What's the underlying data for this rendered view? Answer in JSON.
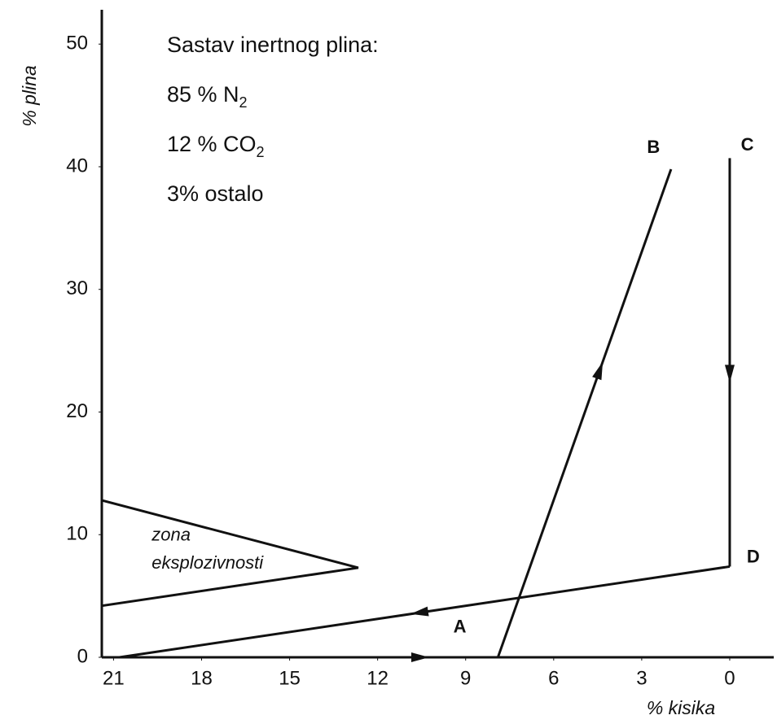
{
  "chart_data": {
    "type": "line",
    "xlabel": "% kisika",
    "ylabel": "% plina",
    "xlim": [
      21.4,
      -1.5
    ],
    "ylim": [
      0,
      52.8
    ],
    "xticks": [
      21,
      18,
      15,
      12,
      9,
      6,
      3,
      0
    ],
    "yticks": [
      0,
      10,
      20,
      30,
      40,
      50
    ],
    "notes": [
      "Sastav inertnog plina:",
      {
        "text": "85 % N",
        "sub": "2"
      },
      {
        "text": "12 % CO",
        "sub": "2"
      },
      "3% ostalo"
    ],
    "annotations": [
      {
        "text": "zona",
        "x": 19.7,
        "y": 9.9
      },
      {
        "text": "eksplozivnosti",
        "x": 19.7,
        "y": 7.6
      }
    ],
    "point_labels": [
      {
        "label": "A",
        "x": 9.2,
        "y": 2.4
      },
      {
        "label": "B",
        "x": 2.6,
        "y": 41.5
      },
      {
        "label": "C",
        "x": -0.6,
        "y": 41.7
      },
      {
        "label": "D",
        "x": -0.8,
        "y": 8.1
      }
    ],
    "series": [
      {
        "color": "#111111",
        "x": [
          21.4,
          12.66,
          21.4
        ],
        "values": [
          12.8,
          7.3,
          4.2
        ]
      },
      {
        "color": "#111111",
        "x": [
          21,
          7.9
        ],
        "values": [
          0,
          0
        ]
      },
      {
        "color": "#111111",
        "x": [
          7.9,
          2.0
        ],
        "values": [
          0,
          39.8
        ]
      },
      {
        "color": "#111111",
        "x": [
          0,
          0
        ],
        "values": [
          40.7,
          7.4
        ]
      },
      {
        "color": "#111111",
        "x": [
          0,
          20.8
        ],
        "values": [
          7.4,
          0
        ]
      }
    ]
  }
}
